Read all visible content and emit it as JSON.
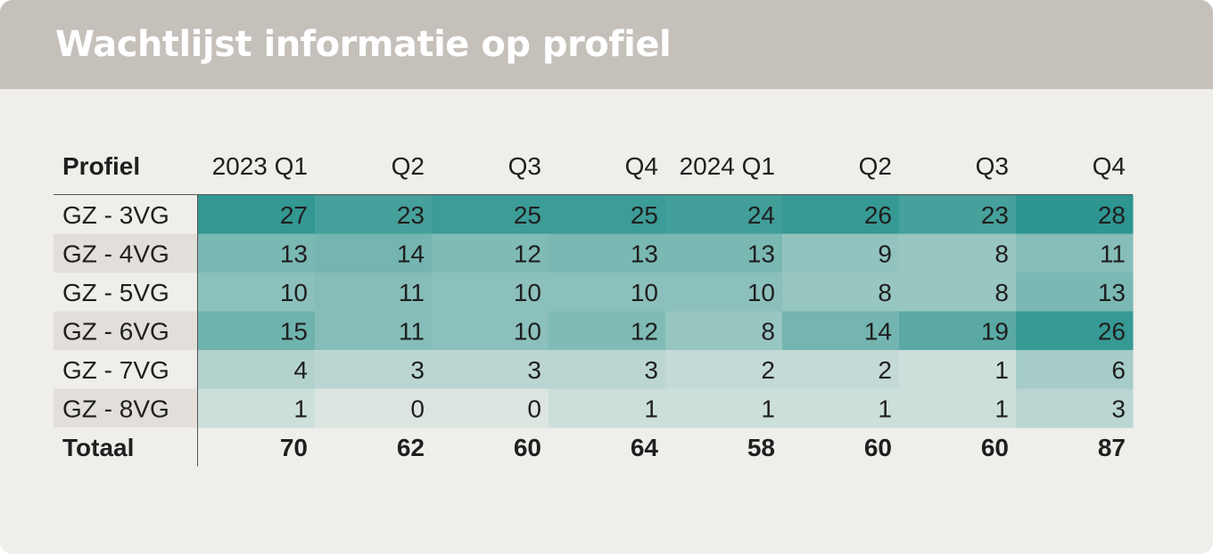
{
  "title": "Wachtlijst informatie op profiel",
  "chart_data": {
    "type": "heatmap",
    "corner_label": "Profiel",
    "columns": [
      "2023 Q1",
      "Q2",
      "Q3",
      "Q4",
      "2024 Q1",
      "Q2",
      "Q3",
      "Q4"
    ],
    "rows": [
      "GZ - 3VG",
      "GZ - 4VG",
      "GZ - 5VG",
      "GZ - 6VG",
      "GZ - 7VG",
      "GZ - 8VG"
    ],
    "values": [
      [
        27,
        23,
        25,
        25,
        24,
        26,
        23,
        28
      ],
      [
        13,
        14,
        12,
        13,
        13,
        9,
        8,
        11
      ],
      [
        10,
        11,
        10,
        10,
        10,
        8,
        8,
        13
      ],
      [
        15,
        11,
        10,
        12,
        8,
        14,
        19,
        26
      ],
      [
        4,
        3,
        3,
        3,
        2,
        2,
        1,
        6
      ],
      [
        1,
        0,
        0,
        1,
        1,
        1,
        1,
        3
      ]
    ],
    "total_label": "Totaal",
    "totals": [
      70,
      62,
      60,
      64,
      58,
      60,
      60,
      87
    ],
    "color_low": "#efeeea",
    "color_high": "#2e9590",
    "row_label_bg": "#e2dfdb"
  }
}
